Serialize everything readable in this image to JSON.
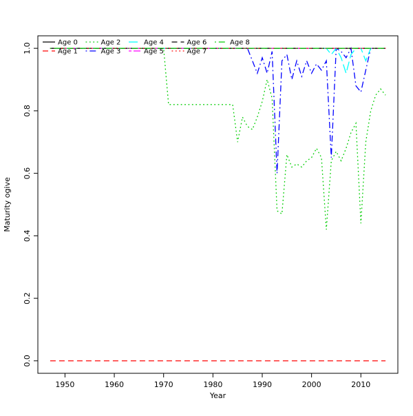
{
  "figure": {
    "background": "#ffffff",
    "border_color": "#000000"
  },
  "chart_data": {
    "type": "line",
    "title": "",
    "xlabel": "Year",
    "ylabel": "Maturity ogive",
    "xlim": [
      1944.5,
      2017.5
    ],
    "ylim": [
      -0.04,
      1.04
    ],
    "xticks": [
      1950,
      1960,
      1970,
      1980,
      1990,
      2000,
      2010
    ],
    "yticks": [
      0.0,
      0.2,
      0.4,
      0.6,
      0.8,
      1.0
    ],
    "ytick_labels": [
      "0.0",
      "0.2",
      "0.4",
      "0.6",
      "0.8",
      "1.0"
    ],
    "grid": false,
    "legend_position": "top-left-inside",
    "legend_rows": 2,
    "legend_columns": 5,
    "palette": {
      "black": "#000000",
      "red": "#FF0000",
      "green": "#00CD00",
      "blue": "#0000FF",
      "cyan": "#00FFFF",
      "magenta": "#FF00FF"
    },
    "series": [
      {
        "name": "Age 0",
        "color": "#000000",
        "linetype": "solid",
        "constant": 1.0,
        "x_range": [
          1947,
          2015
        ]
      },
      {
        "name": "Age 1",
        "color": "#FF0000",
        "linetype": "dashed",
        "constant": 0.0,
        "x_range": [
          1947,
          2015
        ]
      },
      {
        "name": "Age 2",
        "color": "#00CD00",
        "linetype": "dotted",
        "points": [
          [
            1947,
            1.0
          ],
          [
            1970,
            1.0
          ],
          [
            1971,
            0.82
          ],
          [
            1984,
            0.82
          ],
          [
            1985,
            0.7
          ],
          [
            1986,
            0.78
          ],
          [
            1987,
            0.75
          ],
          [
            1988,
            0.74
          ],
          [
            1989,
            0.78
          ],
          [
            1990,
            0.83
          ],
          [
            1991,
            0.9
          ],
          [
            1992,
            0.84
          ],
          [
            1993,
            0.48
          ],
          [
            1994,
            0.47
          ],
          [
            1995,
            0.66
          ],
          [
            1996,
            0.62
          ],
          [
            1997,
            0.63
          ],
          [
            1998,
            0.62
          ],
          [
            1999,
            0.64
          ],
          [
            2000,
            0.65
          ],
          [
            2001,
            0.68
          ],
          [
            2002,
            0.65
          ],
          [
            2003,
            0.42
          ],
          [
            2004,
            0.64
          ],
          [
            2005,
            0.67
          ],
          [
            2006,
            0.64
          ],
          [
            2007,
            0.68
          ],
          [
            2008,
            0.73
          ],
          [
            2009,
            0.76
          ],
          [
            2010,
            0.44
          ],
          [
            2011,
            0.7
          ],
          [
            2012,
            0.8
          ],
          [
            2013,
            0.85
          ],
          [
            2014,
            0.87
          ],
          [
            2015,
            0.85
          ]
        ]
      },
      {
        "name": "Age 3",
        "color": "#0000FF",
        "linetype": "dotdash",
        "points": [
          [
            1947,
            1.0
          ],
          [
            1987,
            1.0
          ],
          [
            1988,
            0.96
          ],
          [
            1989,
            0.92
          ],
          [
            1990,
            0.97
          ],
          [
            1991,
            0.92
          ],
          [
            1992,
            0.99
          ],
          [
            1993,
            0.6
          ],
          [
            1994,
            0.96
          ],
          [
            1995,
            0.98
          ],
          [
            1996,
            0.9
          ],
          [
            1997,
            0.96
          ],
          [
            1998,
            0.91
          ],
          [
            1999,
            0.96
          ],
          [
            2000,
            0.92
          ],
          [
            2001,
            0.95
          ],
          [
            2002,
            0.93
          ],
          [
            2003,
            0.96
          ],
          [
            2004,
            0.65
          ],
          [
            2005,
            1.0
          ],
          [
            2006,
            0.99
          ],
          [
            2007,
            0.97
          ],
          [
            2008,
            1.0
          ],
          [
            2009,
            0.88
          ],
          [
            2010,
            0.86
          ],
          [
            2011,
            0.93
          ],
          [
            2012,
            1.0
          ],
          [
            2013,
            1.0
          ],
          [
            2014,
            1.0
          ],
          [
            2015,
            1.0
          ]
        ]
      },
      {
        "name": "Age 4",
        "color": "#00FFFF",
        "linetype": "longdash",
        "points": [
          [
            1947,
            1.0
          ],
          [
            2003,
            1.0
          ],
          [
            2004,
            0.98
          ],
          [
            2005,
            1.0
          ],
          [
            2006,
            0.97
          ],
          [
            2007,
            0.92
          ],
          [
            2008,
            0.98
          ],
          [
            2009,
            1.0
          ],
          [
            2010,
            1.0
          ],
          [
            2011,
            0.96
          ],
          [
            2012,
            1.0
          ],
          [
            2015,
            1.0
          ]
        ]
      },
      {
        "name": "Age 5",
        "color": "#FF00FF",
        "linetype": "twodash",
        "constant": 1.0,
        "x_range": [
          1947,
          2015
        ]
      },
      {
        "name": "Age 6",
        "color": "#000000",
        "linetype": "dashed",
        "constant": 1.0,
        "x_range": [
          1947,
          2015
        ]
      },
      {
        "name": "Age 7",
        "color": "#FF0000",
        "linetype": "dotted",
        "constant": 1.0,
        "x_range": [
          1947,
          2015
        ]
      },
      {
        "name": "Age 8",
        "color": "#00CD00",
        "linetype": "dotdash",
        "constant": 1.0,
        "x_range": [
          1947,
          2015
        ]
      }
    ]
  }
}
